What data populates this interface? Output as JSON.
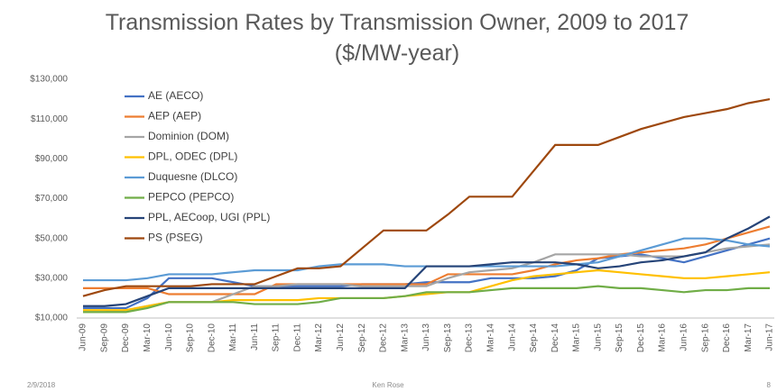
{
  "chart_data": {
    "type": "line",
    "title": "Transmission Rates by Transmission Owner, 2009 to 2017 ($/MW-year)",
    "categories": [
      "Jun-09",
      "Sep-09",
      "Dec-09",
      "Mar-10",
      "Jun-10",
      "Sep-10",
      "Dec-10",
      "Mar-11",
      "Jun-11",
      "Sep-11",
      "Dec-11",
      "Mar-12",
      "Jun-12",
      "Sep-12",
      "Dec-12",
      "Mar-13",
      "Jun-13",
      "Sep-13",
      "Dec-13",
      "Mar-14",
      "Jun-14",
      "Sep-14",
      "Dec-14",
      "Mar-15",
      "Jun-15",
      "Sep-15",
      "Dec-15",
      "Mar-16",
      "Jun-16",
      "Sep-16",
      "Dec-16",
      "Mar-17",
      "Jun-17"
    ],
    "series": [
      {
        "name": "AE (AECO)",
        "color": "#4472c4",
        "values": [
          15000,
          15000,
          15000,
          20000,
          30000,
          30000,
          30000,
          28000,
          26000,
          26000,
          26000,
          26000,
          26000,
          27000,
          27000,
          27000,
          28000,
          28000,
          28000,
          30000,
          30000,
          30000,
          31000,
          34000,
          40000,
          41000,
          42000,
          40000,
          38000,
          41000,
          44000,
          47000,
          50000
        ]
      },
      {
        "name": "AEP (AEP)",
        "color": "#ed7d31",
        "values": [
          25000,
          25000,
          25000,
          25000,
          22000,
          22000,
          22000,
          22000,
          22000,
          27000,
          27000,
          27000,
          27000,
          27000,
          27000,
          27000,
          27000,
          32000,
          32000,
          32000,
          32000,
          34000,
          37000,
          39000,
          40000,
          42000,
          43000,
          44000,
          45000,
          47000,
          50000,
          53000,
          56000
        ]
      },
      {
        "name": "Dominion (DOM)",
        "color": "#a5a5a5",
        "values": [
          13000,
          13000,
          14000,
          16000,
          18000,
          18000,
          18000,
          22000,
          26000,
          26000,
          27000,
          27000,
          27000,
          26000,
          26000,
          26000,
          26000,
          30000,
          33000,
          34000,
          35000,
          38000,
          42000,
          42000,
          42000,
          42000,
          41000,
          41000,
          41000,
          43000,
          45000,
          46000,
          47000
        ]
      },
      {
        "name": "DPL, ODEC (DPL)",
        "color": "#ffc000",
        "values": [
          14000,
          14000,
          14000,
          16000,
          18000,
          18000,
          18000,
          19000,
          19000,
          19000,
          19000,
          20000,
          20000,
          20000,
          20000,
          21000,
          22000,
          23000,
          23000,
          26000,
          29000,
          31000,
          32000,
          33000,
          34000,
          33000,
          32000,
          31000,
          30000,
          30000,
          31000,
          32000,
          33000
        ]
      },
      {
        "name": "Duquesne (DLCO)",
        "color": "#5b9bd5",
        "values": [
          29000,
          29000,
          29000,
          30000,
          32000,
          32000,
          32000,
          33000,
          34000,
          34000,
          34000,
          36000,
          37000,
          37000,
          37000,
          36000,
          36000,
          36000,
          36000,
          36000,
          36000,
          36000,
          36000,
          37000,
          38000,
          41000,
          44000,
          47000,
          50000,
          50000,
          49000,
          47000,
          46000
        ]
      },
      {
        "name": "PEPCO (PEPCO)",
        "color": "#70ad47",
        "values": [
          13000,
          13000,
          13000,
          15000,
          18000,
          18000,
          18000,
          18000,
          17000,
          17000,
          17000,
          18000,
          20000,
          20000,
          20000,
          21000,
          23000,
          23000,
          23000,
          24000,
          25000,
          25000,
          25000,
          25000,
          26000,
          25000,
          25000,
          24000,
          23000,
          24000,
          24000,
          25000,
          25000
        ]
      },
      {
        "name": "PPL, AECoop, UGI (PPL)",
        "color": "#264478",
        "values": [
          16000,
          16000,
          17000,
          21000,
          25000,
          25000,
          25000,
          25000,
          25000,
          25000,
          25000,
          25000,
          25000,
          25000,
          25000,
          25000,
          36000,
          36000,
          36000,
          37000,
          38000,
          38000,
          38000,
          37000,
          35000,
          36000,
          38000,
          39000,
          41000,
          43000,
          50000,
          55000,
          61000
        ]
      },
      {
        "name": "PS (PSEG)",
        "color": "#9e480e",
        "values": [
          21000,
          24000,
          26000,
          26000,
          26000,
          26000,
          27000,
          27000,
          27000,
          31000,
          35000,
          35000,
          36000,
          45000,
          54000,
          54000,
          54000,
          62000,
          71000,
          71000,
          71000,
          84000,
          97000,
          97000,
          97000,
          101000,
          105000,
          108000,
          111000,
          113000,
          115000,
          118000,
          120000
        ]
      }
    ],
    "ylim": [
      10000,
      130000
    ],
    "yticks": [
      {
        "value": 10000,
        "label": "$10,000"
      },
      {
        "value": 30000,
        "label": "$30,000"
      },
      {
        "value": 50000,
        "label": "$50,000"
      },
      {
        "value": 70000,
        "label": "$70,000"
      },
      {
        "value": 90000,
        "label": "$90,000"
      },
      {
        "value": 110000,
        "label": "$110,000"
      },
      {
        "value": 130000,
        "label": "$130,000"
      }
    ],
    "grid": false,
    "legend": "top-left"
  },
  "footer": {
    "date": "2/9/2018",
    "author": "Ken Rose",
    "page": "8"
  }
}
